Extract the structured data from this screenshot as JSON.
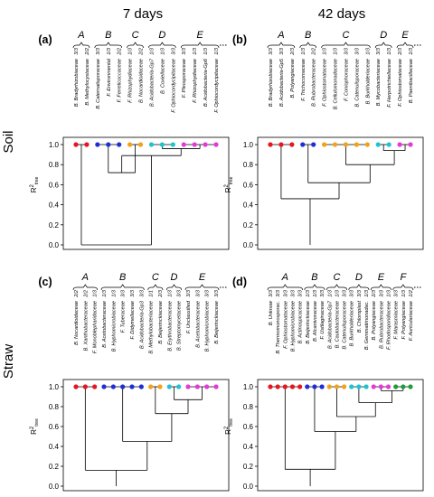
{
  "columns": [
    "7 days",
    "42 days"
  ],
  "rows": [
    "Soil",
    "Straw"
  ],
  "ylabel": "R",
  "ylabel_sup": "2",
  "ylabel_sub": "tree",
  "yticks": [
    "0.0",
    "0.2",
    "0.4",
    "0.6",
    "0.8",
    "1.0"
  ],
  "colors": {
    "red": "#e8141e",
    "blue": "#1f2fd8",
    "orange": "#f2a21a",
    "cyan": "#20c4cf",
    "magenta": "#e33ad8",
    "green": "#1e9e3a"
  },
  "chart_data": [
    {
      "type": "dendrogram",
      "panel": "(a)",
      "ylim": [
        0,
        1
      ],
      "taxa": [
        {
          "name": "B. Bradyrhizobiaceae",
          "frac": "3/3",
          "group": "A",
          "color": "red"
        },
        {
          "name": "B. Methylocystaceae",
          "frac": "2/2",
          "group": "A",
          "color": "red"
        },
        {
          "name": "B. Caternatisporaceae",
          "frac": "3/3",
          "group": "B",
          "color": "blue"
        },
        {
          "name": "F. Environmental",
          "frac": "1/3",
          "group": "B",
          "color": "blue"
        },
        {
          "name": "F. Ferrelicoccaceae",
          "frac": "2/2",
          "group": "B",
          "color": "blue"
        },
        {
          "name": "F. Rhizophydiaceae",
          "frac": "1/3",
          "group": "C",
          "color": "orange"
        },
        {
          "name": "B. Nocardioidaceae",
          "frac": "2/2",
          "group": "C",
          "color": "orange"
        },
        {
          "name": "B. Acidobacteria-Gp7",
          "frac": "1/3",
          "group": "D",
          "color": "cyan"
        },
        {
          "name": "B. Coxiellaceae",
          "frac": "1/3",
          "group": "D",
          "color": "cyan"
        },
        {
          "name": "F. Ophiocordycipitaceae",
          "frac": "3/3",
          "group": "D",
          "color": "cyan"
        },
        {
          "name": "F. Pleosporaceae",
          "frac": "3/3",
          "group": "E",
          "color": "magenta"
        },
        {
          "name": "F. Rhizophydiaceae",
          "frac": "1/3",
          "group": "E",
          "color": "magenta"
        },
        {
          "name": "B. Acidobacteria-Gp6",
          "frac": "1/3",
          "group": "E",
          "color": "magenta"
        },
        {
          "name": "F. Ophiocordycipitaceae",
          "frac": "1/3",
          "group": "E",
          "color": "magenta"
        }
      ],
      "groups": [
        {
          "label": "A",
          "from": 0,
          "to": 1
        },
        {
          "label": "B",
          "from": 2,
          "to": 4
        },
        {
          "label": "C",
          "from": 5,
          "to": 6
        },
        {
          "label": "D",
          "from": 7,
          "to": 9
        },
        {
          "label": "E",
          "from": 10,
          "to": 13,
          "dotted": true
        }
      ],
      "tree": [
        [
          0,
          1,
          0.83
        ],
        [
          2,
          4,
          0.99
        ],
        [
          5,
          6,
          0.99
        ],
        [
          7,
          9,
          0.99
        ],
        [
          10,
          13,
          0.99
        ],
        [
          1,
          2,
          0.72
        ],
        [
          3,
          4,
          0.96
        ],
        [
          2,
          3,
          0.89
        ],
        [
          1,
          2,
          0.0
        ]
      ]
    },
    {
      "type": "dendrogram",
      "panel": "(b)",
      "ylim": [
        0,
        1
      ],
      "taxa": [
        {
          "name": "B. Bradyrhizobiaceae",
          "frac": "3/3",
          "group": "A",
          "color": "red"
        },
        {
          "name": "B. Acidobacteria-Gp5",
          "frac": "3/3",
          "group": "A",
          "color": "red"
        },
        {
          "name": "B. Polyangiaceae",
          "frac": "2/3",
          "group": "A",
          "color": "red"
        },
        {
          "name": "F. Trichocomaceae",
          "frac": "1/3",
          "group": "B",
          "color": "blue"
        },
        {
          "name": "B. Rubrobacteraceae",
          "frac": "2/2",
          "group": "B",
          "color": "blue"
        },
        {
          "name": "F. Ophiostomataceae",
          "frac": "1/3",
          "group": "C",
          "color": "orange"
        },
        {
          "name": "B. Cellulomonadaceae",
          "frac": "1/3",
          "group": "C",
          "color": "orange"
        },
        {
          "name": "F. Coniophoraceae",
          "frac": "3/3",
          "group": "C",
          "color": "orange"
        },
        {
          "name": "B. Catenulisporaceae",
          "frac": "3/3",
          "group": "C",
          "color": "orange"
        },
        {
          "name": "B. Burkholderiaceae",
          "frac": "1/3",
          "group": "C",
          "color": "orange"
        },
        {
          "name": "B. Mycobacteriaceae",
          "frac": "3/3",
          "group": "D",
          "color": "cyan"
        },
        {
          "name": "F. Herpotrichiellaceae",
          "frac": "1/3",
          "group": "D",
          "color": "cyan"
        },
        {
          "name": "F. Ophiostomataceae",
          "frac": "2/3",
          "group": "E",
          "color": "magenta"
        },
        {
          "name": "B. Paenibacillaceae",
          "frac": "1/3",
          "group": "E",
          "color": "magenta"
        }
      ],
      "groups": [
        {
          "label": "A",
          "from": 0,
          "to": 2
        },
        {
          "label": "B",
          "from": 3,
          "to": 4
        },
        {
          "label": "C",
          "from": 5,
          "to": 9
        },
        {
          "label": "D",
          "from": 10,
          "to": 11
        },
        {
          "label": "E",
          "from": 12,
          "to": 13,
          "dotted": true
        }
      ],
      "tree": [
        [
          0,
          2,
          0.99
        ],
        [
          3,
          4,
          0.99
        ],
        [
          5,
          9,
          0.99
        ],
        [
          10,
          11,
          0.99
        ],
        [
          12,
          13,
          0.99
        ],
        [
          3,
          4,
          0.94
        ],
        [
          2,
          3,
          0.8
        ],
        [
          1,
          2,
          0.62
        ],
        [
          0,
          1,
          0.46
        ]
      ]
    },
    {
      "type": "dendrogram",
      "panel": "(c)",
      "ylim": [
        0,
        1
      ],
      "taxa": [
        {
          "name": "B. Nocardioidaceae",
          "frac": "2/2",
          "group": "A",
          "color": "red"
        },
        {
          "name": "B. Xanthobacteraceae",
          "frac": "2/2",
          "group": "A",
          "color": "red"
        },
        {
          "name": "F. Monoblepharidaceae",
          "frac": "1/3",
          "group": "A",
          "color": "red"
        },
        {
          "name": "B. Acetobacteraceae",
          "frac": "1/3",
          "group": "B",
          "color": "blue"
        },
        {
          "name": "B. Hyphomicrobiaceae",
          "frac": "1/3",
          "group": "B",
          "color": "blue"
        },
        {
          "name": "F. Tuberaceae",
          "frac": "3/3",
          "group": "B",
          "color": "blue"
        },
        {
          "name": "F. Didymellaceae",
          "frac": "3/3",
          "group": "B",
          "color": "blue"
        },
        {
          "name": "B. Acidobacteria-Gp3",
          "frac": "3/3",
          "group": "B",
          "color": "blue"
        },
        {
          "name": "B. Methylobacteriaceae",
          "frac": "1/1",
          "group": "C",
          "color": "orange"
        },
        {
          "name": "B. Beijerinckiaceae",
          "frac": "2/3",
          "group": "C",
          "color": "orange"
        },
        {
          "name": "B. Erythrobacteraceae",
          "frac": "1/3",
          "group": "D",
          "color": "cyan"
        },
        {
          "name": "B. Streptomycetaceae",
          "frac": "3/3",
          "group": "D",
          "color": "cyan"
        },
        {
          "name": "F. Unclassified",
          "frac": "3/3",
          "group": "E",
          "color": "magenta"
        },
        {
          "name": "B. Acetobacteraceae",
          "frac": "3/3",
          "group": "E",
          "color": "magenta"
        },
        {
          "name": "B. Hyphomicrobiaceae",
          "frac": "3/3",
          "group": "E",
          "color": "magenta"
        },
        {
          "name": "B. Beijerinckiaceae",
          "frac": "3/3",
          "group": "E",
          "color": "magenta"
        }
      ],
      "groups": [
        {
          "label": "A",
          "from": 0,
          "to": 2
        },
        {
          "label": "B",
          "from": 3,
          "to": 7
        },
        {
          "label": "C",
          "from": 8,
          "to": 9
        },
        {
          "label": "D",
          "from": 10,
          "to": 11
        },
        {
          "label": "E",
          "from": 12,
          "to": 15,
          "dotted": true
        }
      ],
      "tree": [
        [
          0,
          2,
          0.99
        ],
        [
          3,
          7,
          0.99
        ],
        [
          8,
          9,
          0.99
        ],
        [
          10,
          11,
          0.99
        ],
        [
          12,
          15,
          0.99
        ],
        [
          3,
          4,
          0.87
        ],
        [
          2,
          3,
          0.73
        ],
        [
          1,
          2,
          0.45
        ],
        [
          0,
          1,
          0.16
        ]
      ]
    },
    {
      "type": "dendrogram",
      "panel": "(d)",
      "ylim": [
        0,
        1
      ],
      "taxa": [
        {
          "name": "B. Unknow",
          "frac": "3/3",
          "group": "A",
          "color": "red"
        },
        {
          "name": "B. Thermomonosporac.",
          "frac": "3/3",
          "group": "A",
          "color": "red"
        },
        {
          "name": "F. Ophiostomataceae",
          "frac": "3/3",
          "group": "A",
          "color": "red"
        },
        {
          "name": "B. Hyphomicrobiaceae",
          "frac": "3/3",
          "group": "A",
          "color": "red"
        },
        {
          "name": "B. Actinospicaceae",
          "frac": "3/3",
          "group": "A",
          "color": "red"
        },
        {
          "name": "B. Beijerinckiaceae",
          "frac": "1/3",
          "group": "B",
          "color": "blue"
        },
        {
          "name": "B. Alcanivoraceae",
          "frac": "1/3",
          "group": "B",
          "color": "blue"
        },
        {
          "name": "F. Ustilaginaceae",
          "frac": "3/3",
          "group": "B",
          "color": "blue"
        },
        {
          "name": "B. Acidobacteria-Gp7",
          "frac": "1/3",
          "group": "C",
          "color": "orange"
        },
        {
          "name": "B. Caulobacteraceae",
          "frac": "1/3",
          "group": "C",
          "color": "orange"
        },
        {
          "name": "B. Catenulisporaceae",
          "frac": "3/3",
          "group": "C",
          "color": "orange"
        },
        {
          "name": "B. Burkholderiaceae",
          "frac": "3/3",
          "group": "D",
          "color": "cyan"
        },
        {
          "name": "B. Chloroplast",
          "frac": "3/3",
          "group": "D",
          "color": "cyan"
        },
        {
          "name": "B. Gemmatimonadac.",
          "frac": "1/3",
          "group": "D",
          "color": "cyan"
        },
        {
          "name": "B. Polyangiaceae",
          "frac": "2/3",
          "group": "E",
          "color": "magenta"
        },
        {
          "name": "B. Rubrobacteraceae",
          "frac": "3/3",
          "group": "E",
          "color": "magenta"
        },
        {
          "name": "F. Rhodosporidiaceae",
          "frac": "1/3",
          "group": "E",
          "color": "magenta"
        },
        {
          "name": "F. Marasmiaceae",
          "frac": "3/3",
          "group": "F",
          "color": "green"
        },
        {
          "name": "F. Polyangiaceae",
          "frac": "1/3",
          "group": "F",
          "color": "green"
        },
        {
          "name": "F. Auriculariaceae",
          "frac": "1/2",
          "group": "F",
          "color": "green"
        }
      ],
      "groups": [
        {
          "label": "A",
          "from": 0,
          "to": 4
        },
        {
          "label": "B",
          "from": 5,
          "to": 7
        },
        {
          "label": "C",
          "from": 8,
          "to": 10
        },
        {
          "label": "D",
          "from": 11,
          "to": 13
        },
        {
          "label": "E",
          "from": 14,
          "to": 16
        },
        {
          "label": "F",
          "from": 17,
          "to": 19,
          "dotted": true
        }
      ],
      "tree": [
        [
          0,
          4,
          0.99
        ],
        [
          5,
          7,
          0.99
        ],
        [
          8,
          10,
          0.99
        ],
        [
          11,
          13,
          0.99
        ],
        [
          14,
          16,
          0.99
        ],
        [
          17,
          19,
          0.99
        ],
        [
          4,
          5,
          0.96
        ],
        [
          3,
          4,
          0.84
        ],
        [
          2,
          3,
          0.7
        ],
        [
          1,
          2,
          0.55
        ],
        [
          0,
          1,
          0.17
        ]
      ]
    }
  ]
}
